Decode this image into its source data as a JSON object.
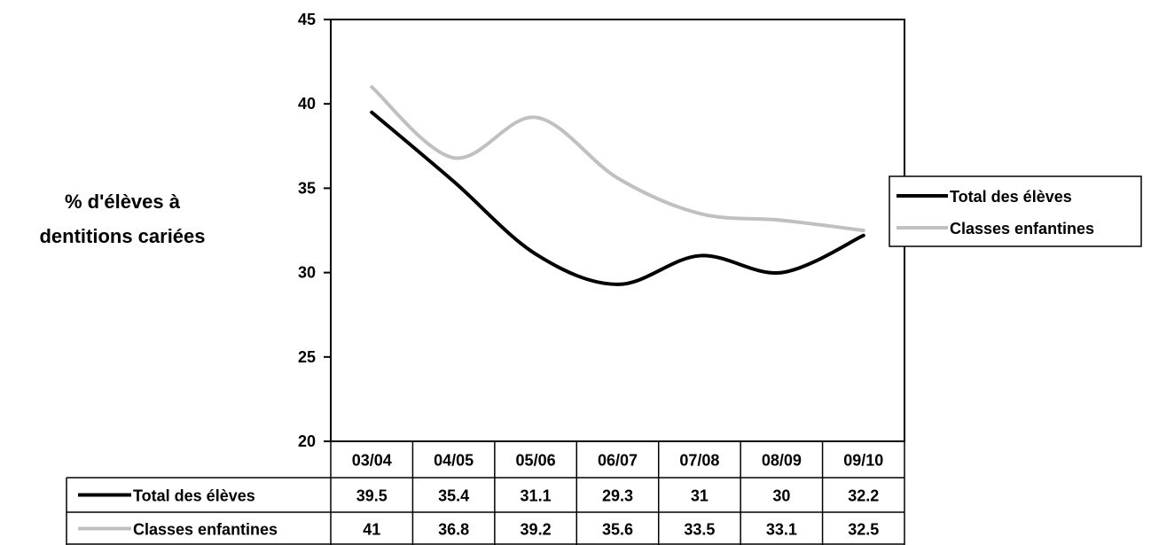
{
  "chart_data": {
    "type": "line",
    "title": "",
    "xlabel": "",
    "ylabel_lines": [
      "% d'élèves à",
      "dentitions cariées"
    ],
    "ylim": [
      20,
      45
    ],
    "yticks": [
      "20",
      "25",
      "30",
      "35",
      "40",
      "45"
    ],
    "categories": [
      "03/04",
      "04/05",
      "05/06",
      "06/07",
      "07/08",
      "08/09",
      "09/10"
    ],
    "series": [
      {
        "name": "Total des élèves",
        "color": "#000000",
        "values": [
          39.5,
          35.4,
          31.1,
          29.3,
          31,
          30,
          32.2
        ],
        "labels": [
          "39.5",
          "35.4",
          "31.1",
          "29.3",
          "31",
          "30",
          "32.2"
        ]
      },
      {
        "name": "Classes enfantines",
        "color": "#c0c0c0",
        "values": [
          41,
          36.8,
          39.2,
          35.6,
          33.5,
          33.1,
          32.5
        ],
        "labels": [
          "41",
          "36.8",
          "39.2",
          "35.6",
          "33.5",
          "33.1",
          "32.5"
        ]
      }
    ],
    "grid": false,
    "legend_position": "right",
    "data_table": true
  }
}
